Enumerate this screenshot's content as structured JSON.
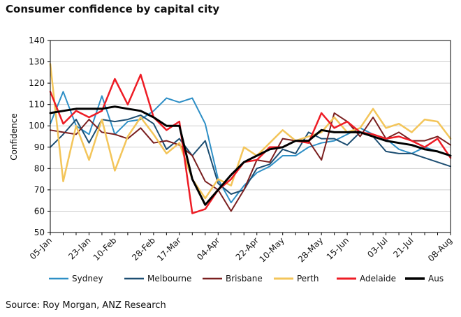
{
  "title": "Consumer confidence by capital city",
  "source": "Source: Roy Morgan, ANZ Research",
  "chart_data": {
    "type": "line",
    "ylabel": "Confidence",
    "ylim": [
      50,
      140
    ],
    "yticks": [
      50,
      60,
      70,
      80,
      90,
      100,
      110,
      120,
      130,
      140
    ],
    "x_tick_labels": [
      "05-Jan",
      "23-Jan",
      "10-Feb",
      "28-Feb",
      "17-Mar",
      "04-Apr",
      "22-Apr",
      "10-May",
      "28-May",
      "15-Jun",
      "03-Jul",
      "21-Jul",
      "08-Aug"
    ],
    "n_points": 32,
    "series": [
      {
        "name": "Sydney",
        "color": "#2e8fc6",
        "width": 2,
        "values": [
          101,
          116,
          100,
          96,
          114,
          96,
          102,
          103,
          107,
          113,
          111,
          113,
          101,
          75,
          64,
          72,
          78,
          81,
          86,
          86,
          90,
          92,
          93,
          96,
          99,
          96,
          94,
          89,
          87,
          90,
          88,
          86
        ]
      },
      {
        "name": "Melbourne",
        "color": "#1d4e72",
        "width": 2,
        "values": [
          90,
          96,
          103,
          92,
          103,
          102,
          103,
          105,
          101,
          89,
          94,
          86,
          93,
          73,
          68,
          70,
          80,
          82,
          89,
          87,
          97,
          94,
          94,
          91,
          97,
          95,
          88,
          87,
          87,
          85,
          83,
          81
        ]
      },
      {
        "name": "Brisbane",
        "color": "#7a1f1f",
        "width": 2,
        "values": [
          98,
          97,
          96,
          103,
          97,
          96,
          94,
          99,
          92,
          93,
          91,
          86,
          74,
          70,
          60,
          70,
          84,
          83,
          94,
          93,
          93,
          84,
          106,
          102,
          95,
          104,
          94,
          97,
          93,
          93,
          95,
          91
        ]
      },
      {
        "name": "Perth",
        "color": "#f3c55a",
        "width": 2.5,
        "values": [
          129,
          74,
          100,
          84,
          103,
          79,
          95,
          104,
          96,
          87,
          92,
          75,
          66,
          75,
          72,
          90,
          86,
          92,
          98,
          93,
          95,
          97,
          104,
          97,
          99,
          108,
          99,
          101,
          97,
          103,
          102,
          94
        ]
      },
      {
        "name": "Adelaide",
        "color": "#ee1c25",
        "width": 2.5,
        "values": [
          116,
          101,
          107,
          104,
          107,
          122,
          110,
          124,
          104,
          98,
          102,
          59,
          61,
          70,
          75,
          83,
          84,
          90,
          90,
          93,
          92,
          106,
          99,
          102,
          97,
          96,
          94,
          95,
          93,
          90,
          94,
          85
        ]
      },
      {
        "name": "Aus",
        "color": "#000000",
        "width": 3,
        "values": [
          106,
          107,
          108,
          108,
          108,
          109,
          108,
          107,
          104,
          100,
          100,
          75,
          63,
          70,
          77,
          83,
          86,
          89,
          90,
          93,
          93,
          98,
          97,
          97,
          97,
          95,
          93,
          92,
          91,
          89,
          88,
          86
        ]
      }
    ]
  }
}
